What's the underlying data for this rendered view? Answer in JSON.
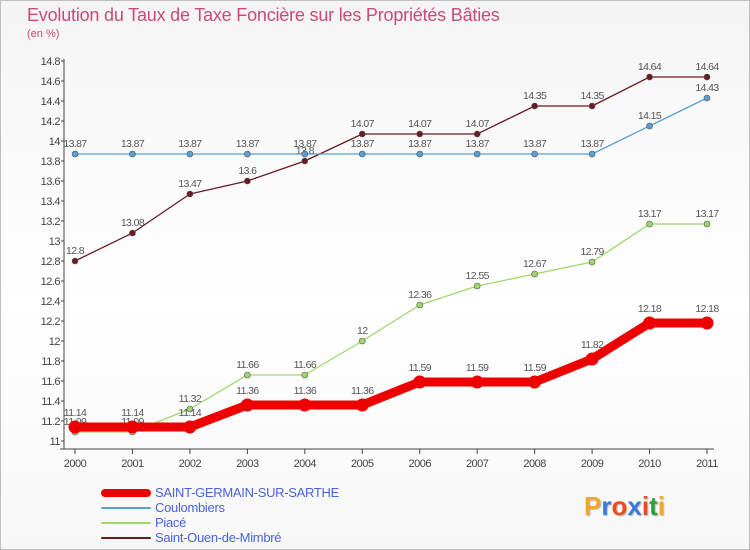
{
  "header": {
    "title": "Evolution du Taux de Taxe Foncière sur les Propriétés Bâties",
    "unit": "(en %)"
  },
  "colors": {
    "title": "#c9497c",
    "axis_text": "#444444",
    "legend_text": "#4a64d8",
    "grid": "#cccccc"
  },
  "chart_data": {
    "type": "line",
    "title": "Evolution du Taux de Taxe Foncière sur les Propriétés Bâties",
    "ylabel": "(en %)",
    "xlabel": "",
    "x": [
      "2000",
      "2001",
      "2002",
      "2003",
      "2004",
      "2005",
      "2006",
      "2007",
      "2008",
      "2009",
      "2010",
      "2011"
    ],
    "ylim": [
      11,
      14.8
    ],
    "yticks": [
      "11",
      "11.2",
      "11.4",
      "11.6",
      "11.8",
      "12",
      "12.2",
      "12.4",
      "12.6",
      "12.8",
      "13",
      "13.2",
      "13.4",
      "13.6",
      "13.8",
      "14",
      "14.2",
      "14.4",
      "14.6",
      "14.8"
    ],
    "grid": false,
    "legend_position": "bottom-left",
    "series": [
      {
        "name": "Saint-Ouen-de-Mimbré",
        "color": "#6b1b22",
        "values": [
          12.8,
          13.08,
          13.47,
          13.6,
          13.8,
          14.07,
          14.07,
          14.07,
          14.35,
          14.35,
          14.64,
          14.64
        ],
        "labels": [
          "12.8",
          "13.08",
          "13.47",
          "13.6",
          "13.8",
          "14.07",
          "14.07",
          "14.07",
          "14.35",
          "14.35",
          "14.64",
          "14.64"
        ]
      },
      {
        "name": "Coulombiers",
        "color": "#5a9fd4",
        "values": [
          13.87,
          13.87,
          13.87,
          13.87,
          13.87,
          13.87,
          13.87,
          13.87,
          13.87,
          13.87,
          14.15,
          14.43
        ],
        "labels": [
          "13.87",
          "13.87",
          "13.87",
          "13.87",
          "13.87",
          "13.87",
          "13.87",
          "13.87",
          "13.87",
          "13.87",
          "14.15",
          "14.43"
        ]
      },
      {
        "name": "Piacé",
        "color": "#9ed86b",
        "values": [
          11.09,
          11.09,
          11.32,
          11.66,
          11.66,
          12,
          12.36,
          12.55,
          12.67,
          12.79,
          13.17,
          13.17
        ],
        "labels": [
          "11.09",
          "11.09",
          "11.32",
          "11.66",
          "11.66",
          "12",
          "12.36",
          "12.55",
          "12.67",
          "12.79",
          "13.17",
          "13.17"
        ]
      },
      {
        "name": "SAINT-GERMAIN-SUR-SARTHE",
        "color": "#ee0000",
        "values": [
          11.14,
          11.14,
          11.14,
          11.36,
          11.36,
          11.36,
          11.59,
          11.59,
          11.59,
          11.82,
          12.18,
          12.18
        ],
        "labels": [
          "11.14",
          "11.14",
          "11.14",
          "11.36",
          "11.36",
          "11.36",
          "11.59",
          "11.59",
          "11.59",
          "11.82",
          "12.18",
          "12.18"
        ]
      }
    ]
  },
  "legend": {
    "items": [
      {
        "label": "SAINT-GERMAIN-SUR-SARTHE",
        "color": "#ee0000"
      },
      {
        "label": "Coulombiers",
        "color": "#5a9fd4"
      },
      {
        "label": "Piacé",
        "color": "#9ed86b"
      },
      {
        "label": "Saint-Ouen-de-Mimbré",
        "color": "#6b1b22"
      }
    ]
  },
  "logo": {
    "letters": [
      "P",
      "r",
      "o",
      "x",
      "i",
      "t",
      "i"
    ],
    "colors": [
      "#f5a623",
      "#3a7bd5",
      "#e84e1b",
      "#3a7bd5",
      "#e84e1b",
      "#2e9e3e",
      "#f5a623"
    ]
  }
}
